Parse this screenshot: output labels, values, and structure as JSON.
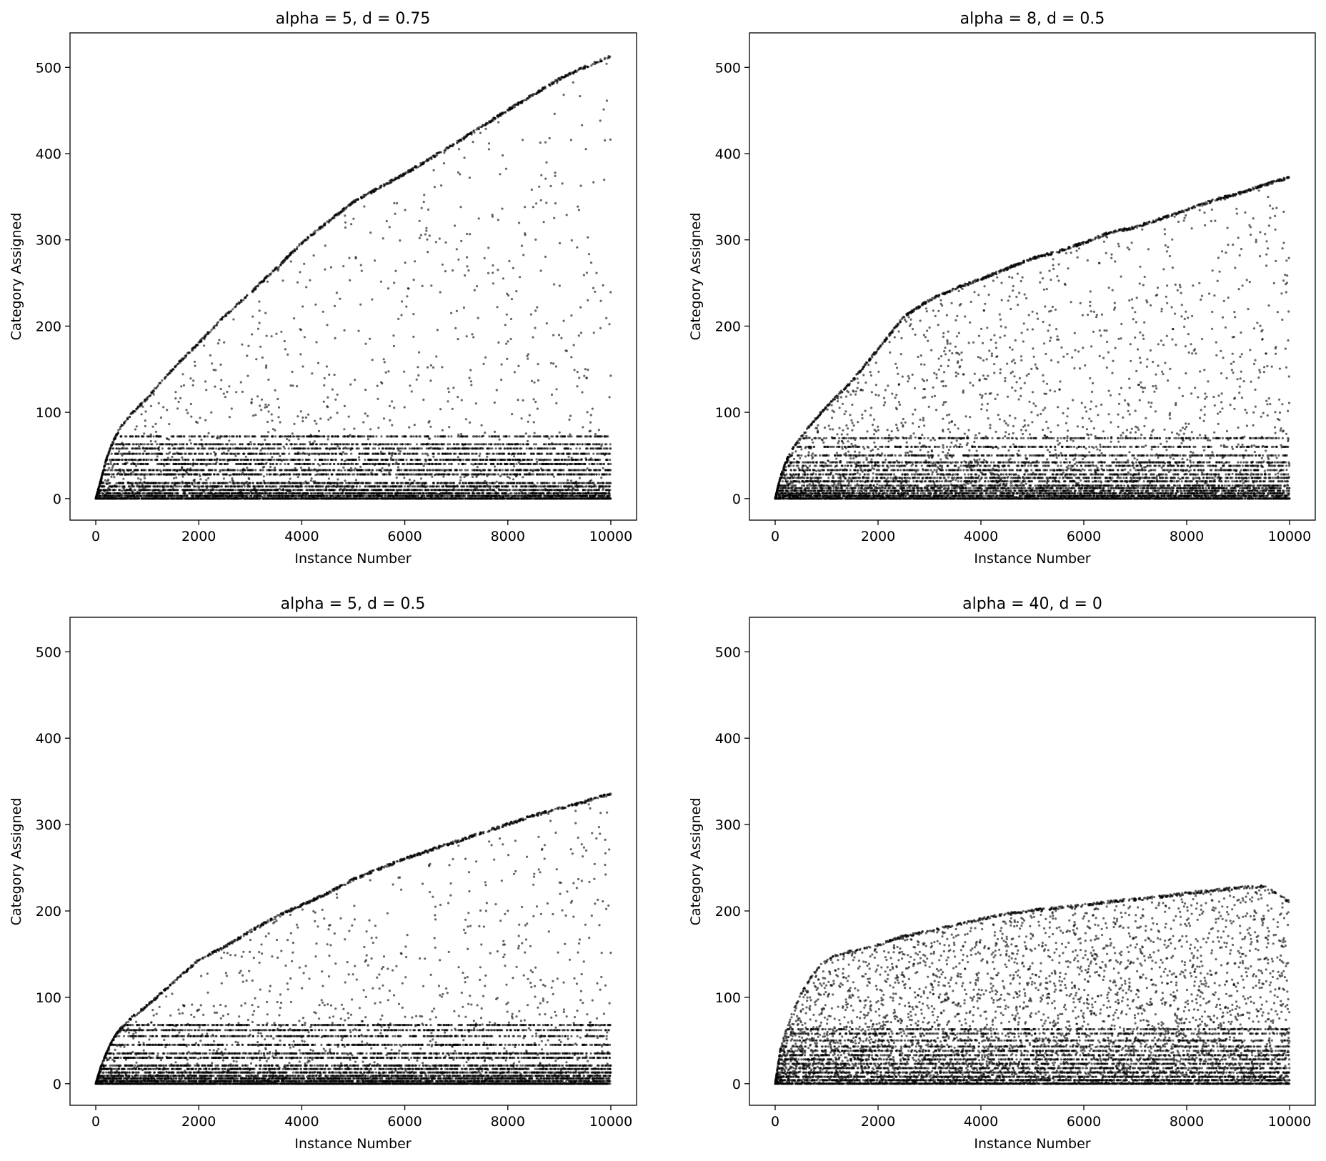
{
  "figure": {
    "point_color": "#000000",
    "point_opacity": 0.6,
    "background": "#ffffff"
  },
  "chart_data": [
    {
      "type": "scatter",
      "title": "alpha = 5, d = 0.75",
      "xlabel": "Instance Number",
      "ylabel": "Category Assigned",
      "xlim": [
        -500,
        10500
      ],
      "ylim": [
        -25,
        540
      ],
      "xticks": [
        0,
        2000,
        4000,
        6000,
        8000,
        10000
      ],
      "yticks": [
        0,
        100,
        200,
        300,
        400,
        500
      ],
      "grid": false,
      "n_instances": 10000,
      "frontier": [
        [
          0,
          0
        ],
        [
          100,
          22
        ],
        [
          200,
          45
        ],
        [
          300,
          62
        ],
        [
          400,
          75
        ],
        [
          500,
          86
        ],
        [
          700,
          100
        ],
        [
          1000,
          118
        ],
        [
          1500,
          152
        ],
        [
          2000,
          182
        ],
        [
          2500,
          213
        ],
        [
          3000,
          240
        ],
        [
          3500,
          268
        ],
        [
          4000,
          298
        ],
        [
          4500,
          322
        ],
        [
          5000,
          345
        ],
        [
          5500,
          362
        ],
        [
          6000,
          378
        ],
        [
          6500,
          396
        ],
        [
          7000,
          414
        ],
        [
          7500,
          433
        ],
        [
          8000,
          452
        ],
        [
          8500,
          470
        ],
        [
          9000,
          488
        ],
        [
          9500,
          502
        ],
        [
          10000,
          514
        ]
      ],
      "dense_bands": [
        0,
        3,
        6,
        10,
        14,
        18,
        28,
        33,
        40,
        45,
        52,
        58,
        63,
        72
      ]
    },
    {
      "type": "scatter",
      "title": "alpha = 8, d = 0.5",
      "xlabel": "Instance Number",
      "ylabel": "Category Assigned",
      "xlim": [
        -500,
        10500
      ],
      "ylim": [
        -25,
        540
      ],
      "xticks": [
        0,
        2000,
        4000,
        6000,
        8000,
        10000
      ],
      "yticks": [
        0,
        100,
        200,
        300,
        400,
        500
      ],
      "grid": false,
      "n_instances": 10000,
      "frontier": [
        [
          0,
          0
        ],
        [
          100,
          25
        ],
        [
          200,
          42
        ],
        [
          300,
          55
        ],
        [
          500,
          72
        ],
        [
          700,
          88
        ],
        [
          1000,
          108
        ],
        [
          1500,
          138
        ],
        [
          2000,
          175
        ],
        [
          2500,
          212
        ],
        [
          3000,
          232
        ],
        [
          3500,
          245
        ],
        [
          4000,
          256
        ],
        [
          4500,
          268
        ],
        [
          5000,
          280
        ],
        [
          5500,
          288
        ],
        [
          6000,
          298
        ],
        [
          6500,
          310
        ],
        [
          7000,
          316
        ],
        [
          7500,
          326
        ],
        [
          8000,
          336
        ],
        [
          8500,
          347
        ],
        [
          9000,
          355
        ],
        [
          9500,
          365
        ],
        [
          10000,
          374
        ]
      ],
      "dense_bands": [
        0,
        3,
        6,
        9,
        12,
        15,
        20,
        24,
        28,
        33,
        38,
        42,
        50,
        60,
        70
      ]
    },
    {
      "type": "scatter",
      "title": "alpha = 5, d = 0.5",
      "xlabel": "Instance Number",
      "ylabel": "Category Assigned",
      "xlim": [
        -500,
        10500
      ],
      "ylim": [
        -25,
        540
      ],
      "xticks": [
        0,
        2000,
        4000,
        6000,
        8000,
        10000
      ],
      "yticks": [
        0,
        100,
        200,
        300,
        400,
        500
      ],
      "grid": false,
      "n_instances": 10000,
      "frontier": [
        [
          0,
          0
        ],
        [
          100,
          20
        ],
        [
          200,
          35
        ],
        [
          300,
          48
        ],
        [
          400,
          58
        ],
        [
          500,
          66
        ],
        [
          700,
          78
        ],
        [
          1000,
          92
        ],
        [
          1500,
          118
        ],
        [
          2000,
          145
        ],
        [
          2500,
          160
        ],
        [
          3000,
          178
        ],
        [
          3500,
          195
        ],
        [
          4000,
          208
        ],
        [
          4500,
          222
        ],
        [
          5000,
          238
        ],
        [
          5500,
          250
        ],
        [
          6000,
          262
        ],
        [
          6500,
          272
        ],
        [
          7000,
          282
        ],
        [
          7500,
          292
        ],
        [
          8000,
          302
        ],
        [
          8500,
          312
        ],
        [
          9000,
          320
        ],
        [
          9500,
          328
        ],
        [
          10000,
          337
        ]
      ],
      "dense_bands": [
        0,
        3,
        6,
        9,
        13,
        17,
        21,
        30,
        35,
        45,
        55,
        62,
        68
      ]
    },
    {
      "type": "scatter",
      "title": "alpha = 40, d = 0",
      "xlabel": "Instance Number",
      "ylabel": "Category Assigned",
      "xlim": [
        -500,
        10500
      ],
      "ylim": [
        -25,
        540
      ],
      "xticks": [
        0,
        2000,
        4000,
        6000,
        8000,
        10000
      ],
      "yticks": [
        0,
        100,
        200,
        300,
        400,
        500
      ],
      "grid": false,
      "n_instances": 10000,
      "frontier": [
        [
          0,
          0
        ],
        [
          100,
          40
        ],
        [
          200,
          60
        ],
        [
          300,
          78
        ],
        [
          400,
          92
        ],
        [
          500,
          105
        ],
        [
          700,
          125
        ],
        [
          900,
          140
        ],
        [
          1200,
          150
        ],
        [
          1500,
          155
        ],
        [
          2000,
          162
        ],
        [
          2500,
          172
        ],
        [
          3000,
          178
        ],
        [
          3500,
          185
        ],
        [
          4000,
          192
        ],
        [
          4500,
          198
        ],
        [
          5000,
          202
        ],
        [
          5500,
          205
        ],
        [
          6000,
          208
        ],
        [
          6500,
          212
        ],
        [
          7000,
          215
        ],
        [
          7500,
          218
        ],
        [
          8000,
          222
        ],
        [
          8500,
          225
        ],
        [
          9000,
          228
        ],
        [
          9500,
          230
        ],
        [
          10000,
          212
        ]
      ],
      "dense_bands": [
        0,
        4,
        8,
        13,
        18,
        23,
        28,
        33,
        38,
        43,
        50,
        58,
        63
      ]
    }
  ]
}
